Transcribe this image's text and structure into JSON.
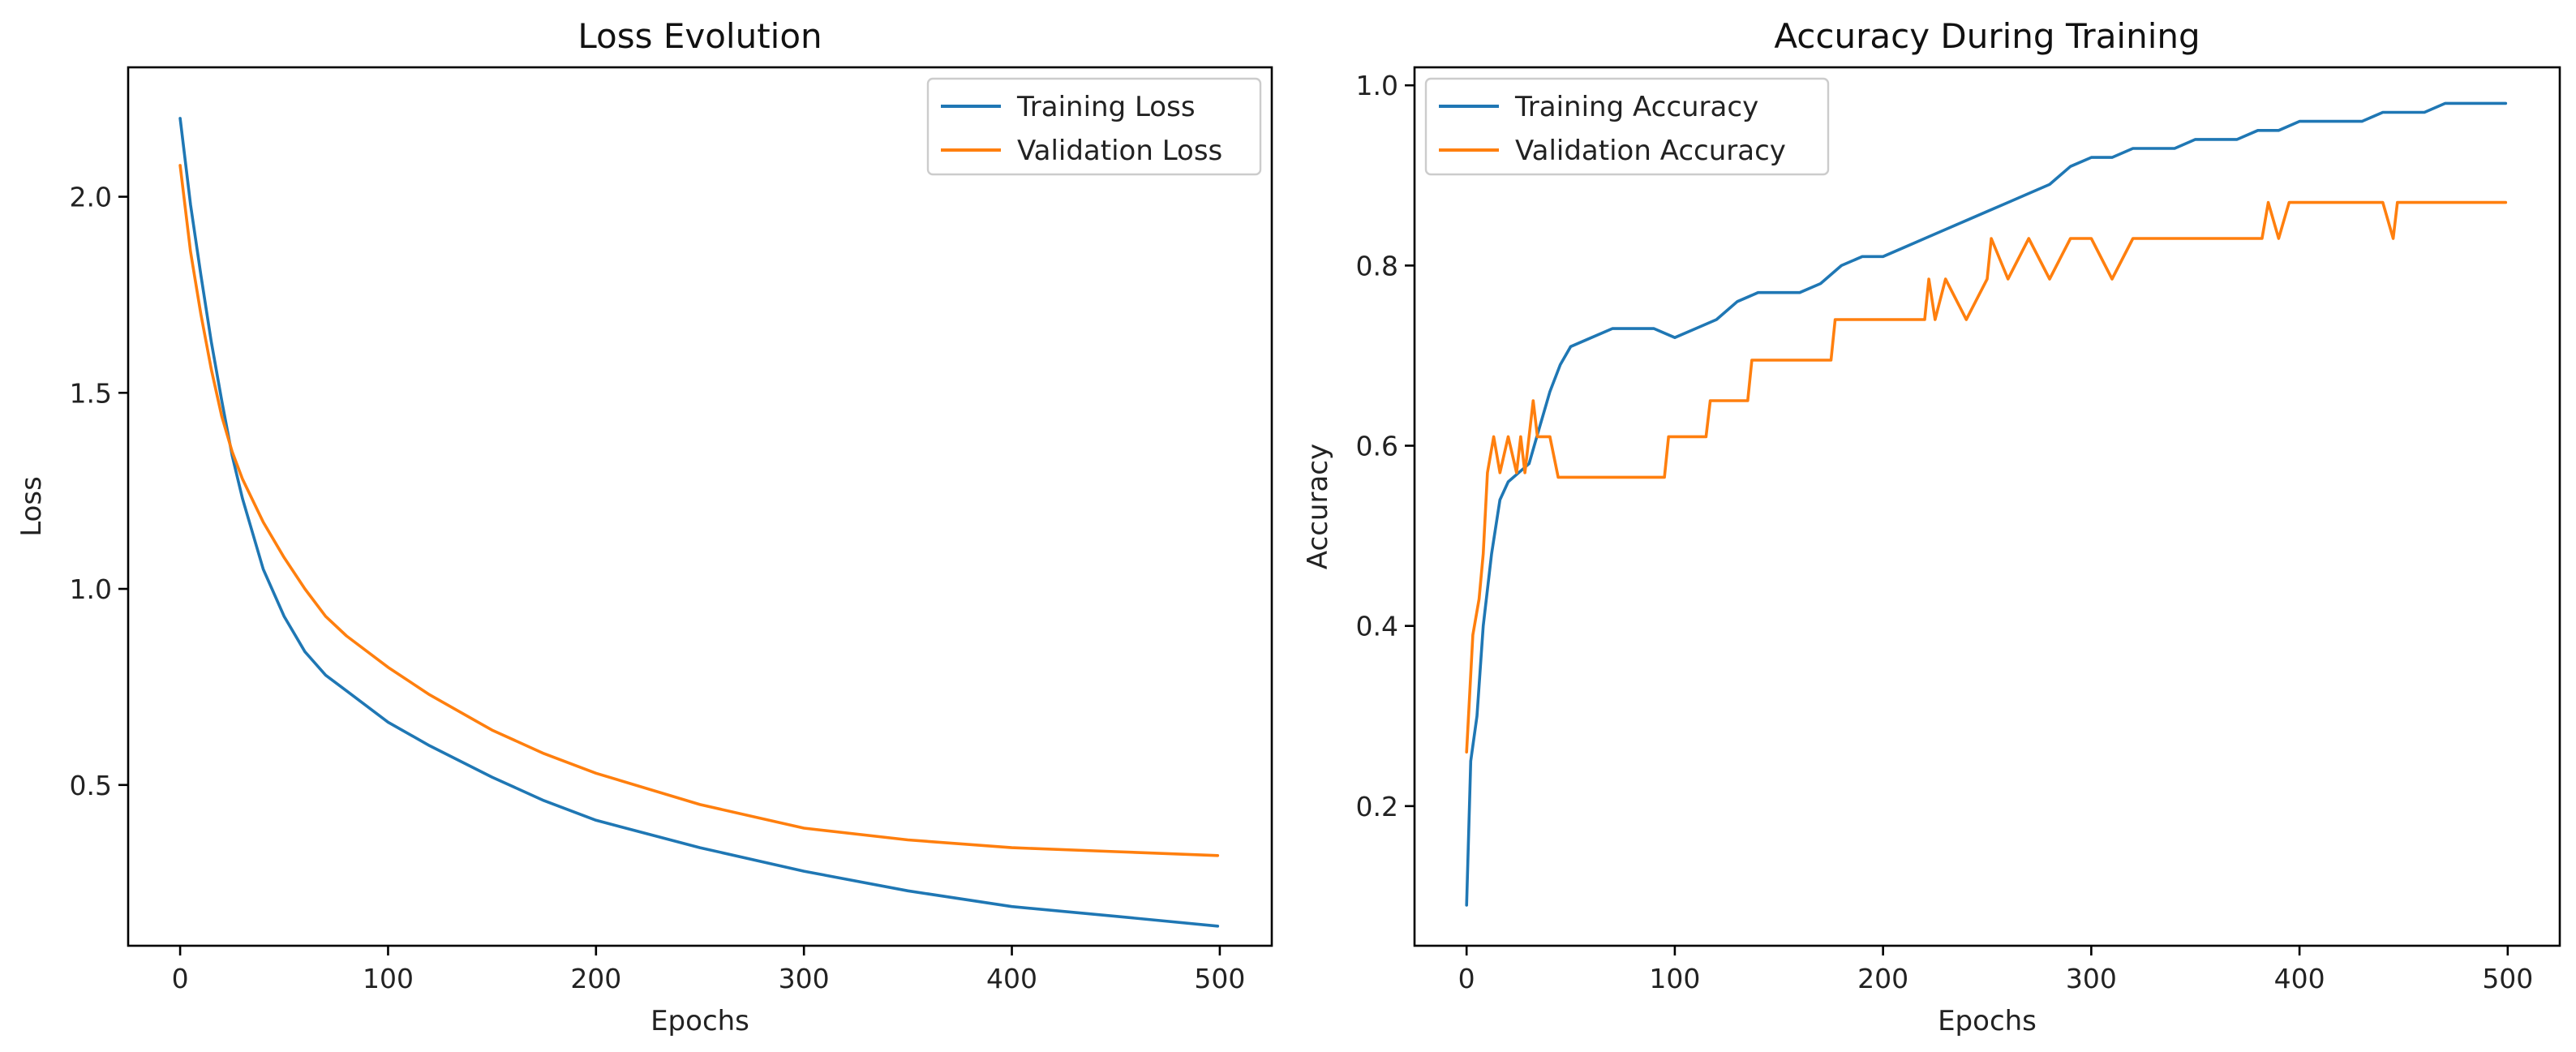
{
  "chart_data": [
    {
      "type": "line",
      "title": "Loss Evolution",
      "xlabel": "Epochs",
      "ylabel": "Loss",
      "xlim": [
        -25,
        525
      ],
      "ylim": [
        0.09,
        2.33
      ],
      "xticks": [
        0,
        100,
        200,
        300,
        400,
        500
      ],
      "yticks": [
        0.5,
        1.0,
        1.5,
        2.0
      ],
      "xtick_labels": [
        "0",
        "100",
        "200",
        "300",
        "400",
        "500"
      ],
      "ytick_labels": [
        "0.5",
        "1.0",
        "1.5",
        "2.0"
      ],
      "legend": "top-right",
      "grid": false,
      "series": [
        {
          "name": "Training Loss",
          "color": "#1f77b4",
          "x": [
            0,
            5,
            10,
            15,
            20,
            25,
            30,
            40,
            50,
            60,
            70,
            80,
            100,
            120,
            150,
            175,
            200,
            250,
            300,
            350,
            400,
            450,
            499
          ],
          "y": [
            2.2,
            1.98,
            1.8,
            1.63,
            1.48,
            1.34,
            1.23,
            1.05,
            0.93,
            0.84,
            0.78,
            0.74,
            0.66,
            0.6,
            0.52,
            0.46,
            0.41,
            0.34,
            0.28,
            0.23,
            0.19,
            0.165,
            0.14
          ]
        },
        {
          "name": "Validation Loss",
          "color": "#ff7f0e",
          "x": [
            0,
            5,
            10,
            15,
            20,
            25,
            30,
            40,
            50,
            60,
            70,
            80,
            100,
            120,
            150,
            175,
            200,
            250,
            300,
            350,
            400,
            450,
            499
          ],
          "y": [
            2.08,
            1.86,
            1.7,
            1.56,
            1.44,
            1.35,
            1.28,
            1.17,
            1.08,
            1.0,
            0.93,
            0.88,
            0.8,
            0.73,
            0.64,
            0.58,
            0.53,
            0.45,
            0.39,
            0.36,
            0.34,
            0.33,
            0.32
          ]
        }
      ]
    },
    {
      "type": "line",
      "title": "Accuracy During Training",
      "xlabel": "Epochs",
      "ylabel": "Accuracy",
      "xlim": [
        -25,
        525
      ],
      "ylim": [
        0.045,
        1.02
      ],
      "xticks": [
        0,
        100,
        200,
        300,
        400,
        500
      ],
      "yticks": [
        0.2,
        0.4,
        0.6,
        0.8,
        1.0
      ],
      "xtick_labels": [
        "0",
        "100",
        "200",
        "300",
        "400",
        "500"
      ],
      "ytick_labels": [
        "0.2",
        "0.4",
        "0.6",
        "0.8",
        "1.0"
      ],
      "legend": "top-left",
      "grid": false,
      "series": [
        {
          "name": "Training Accuracy",
          "color": "#1f77b4",
          "x": [
            0,
            2,
            5,
            8,
            12,
            16,
            20,
            25,
            30,
            35,
            40,
            45,
            50,
            60,
            70,
            80,
            90,
            100,
            110,
            120,
            130,
            140,
            150,
            160,
            170,
            180,
            190,
            200,
            210,
            220,
            230,
            240,
            250,
            260,
            270,
            280,
            290,
            300,
            310,
            320,
            330,
            340,
            350,
            360,
            370,
            380,
            390,
            400,
            410,
            420,
            430,
            440,
            450,
            460,
            470,
            480,
            490,
            499
          ],
          "y": [
            0.09,
            0.25,
            0.3,
            0.4,
            0.48,
            0.54,
            0.56,
            0.57,
            0.58,
            0.62,
            0.66,
            0.69,
            0.71,
            0.72,
            0.73,
            0.73,
            0.73,
            0.72,
            0.73,
            0.74,
            0.76,
            0.77,
            0.77,
            0.77,
            0.78,
            0.8,
            0.81,
            0.81,
            0.82,
            0.83,
            0.84,
            0.85,
            0.86,
            0.87,
            0.88,
            0.89,
            0.91,
            0.92,
            0.92,
            0.93,
            0.93,
            0.93,
            0.94,
            0.94,
            0.94,
            0.95,
            0.95,
            0.96,
            0.96,
            0.96,
            0.96,
            0.97,
            0.97,
            0.97,
            0.98,
            0.98,
            0.98,
            0.98
          ]
        },
        {
          "name": "Validation Accuracy",
          "color": "#ff7f0e",
          "x": [
            0,
            3,
            6,
            8,
            10,
            13,
            16,
            20,
            24,
            26,
            28,
            30,
            32,
            34,
            36,
            40,
            44,
            48,
            60,
            80,
            95,
            97,
            110,
            115,
            117,
            135,
            137,
            175,
            177,
            220,
            222,
            225,
            230,
            240,
            250,
            252,
            260,
            270,
            280,
            290,
            300,
            310,
            320,
            330,
            340,
            360,
            382,
            385,
            390,
            395,
            400,
            420,
            440,
            445,
            447,
            470,
            499
          ],
          "y": [
            0.26,
            0.39,
            0.43,
            0.48,
            0.57,
            0.61,
            0.57,
            0.61,
            0.57,
            0.61,
            0.57,
            0.61,
            0.65,
            0.61,
            0.61,
            0.61,
            0.565,
            0.565,
            0.565,
            0.565,
            0.565,
            0.61,
            0.61,
            0.61,
            0.65,
            0.65,
            0.695,
            0.695,
            0.74,
            0.74,
            0.785,
            0.74,
            0.785,
            0.74,
            0.785,
            0.83,
            0.785,
            0.83,
            0.785,
            0.83,
            0.83,
            0.785,
            0.83,
            0.83,
            0.83,
            0.83,
            0.83,
            0.87,
            0.83,
            0.87,
            0.87,
            0.87,
            0.87,
            0.83,
            0.87,
            0.87,
            0.87
          ]
        }
      ]
    }
  ]
}
